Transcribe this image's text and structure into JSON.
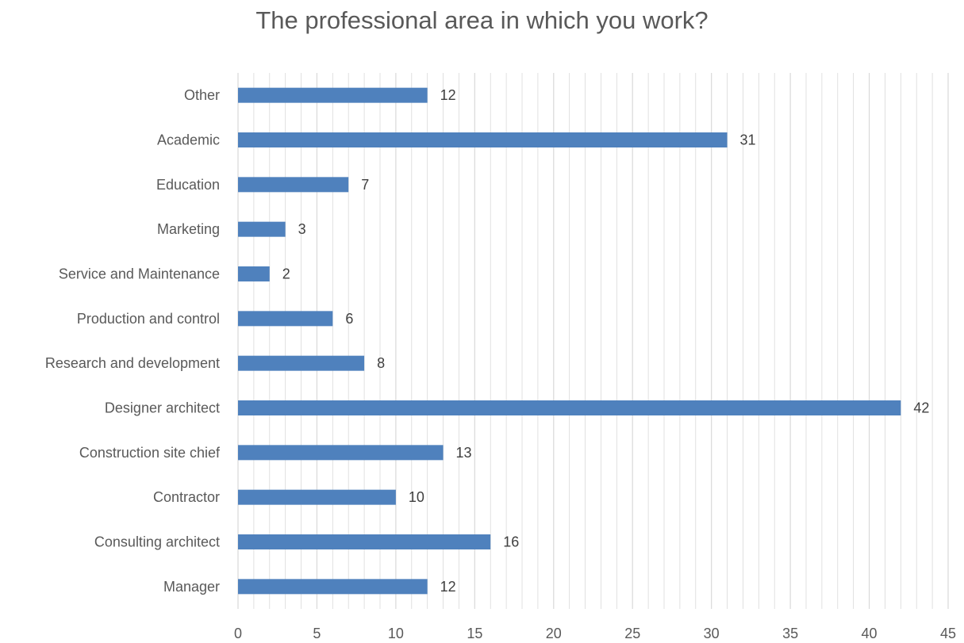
{
  "chart_data": {
    "type": "bar",
    "orientation": "horizontal",
    "title": "The professional area in which you work?",
    "xlabel": "",
    "ylabel": "",
    "categories": [
      "Other",
      "Academic",
      "Education",
      "Marketing",
      "Service and Maintenance",
      "Production and control",
      "Research and development",
      "Designer architect",
      "Construction site chief",
      "Contractor",
      "Consulting architect",
      "Manager"
    ],
    "values": [
      12,
      31,
      7,
      3,
      2,
      6,
      8,
      42,
      13,
      10,
      16,
      12
    ],
    "xlim": [
      0,
      45
    ],
    "x_ticks": [
      0,
      5,
      10,
      15,
      20,
      25,
      30,
      35,
      40,
      45
    ],
    "grid": "vertical major and minor",
    "data_labels": true,
    "legend": "none",
    "bar_color": "#4F81BD",
    "gridline_color": "#D9D9D9"
  }
}
